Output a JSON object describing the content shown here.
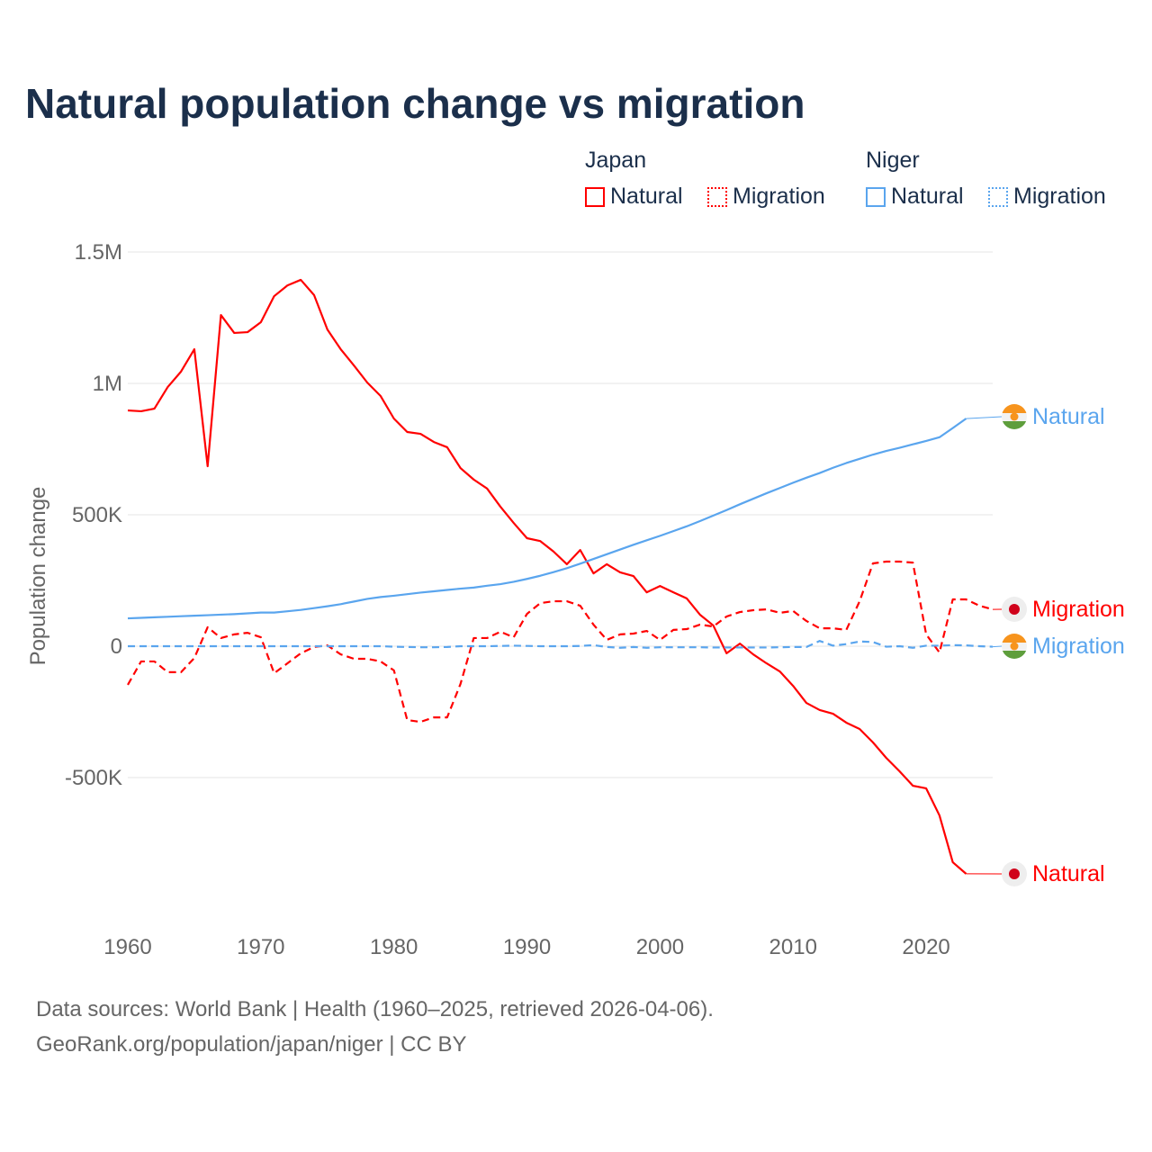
{
  "title": "Natural population change vs migration",
  "legend": {
    "groups": [
      {
        "name": "Japan",
        "items": [
          "Natural",
          "Migration"
        ]
      },
      {
        "name": "Niger",
        "items": [
          "Natural",
          "Migration"
        ]
      }
    ]
  },
  "colors": {
    "japan": "#ff0000",
    "niger": "#5aa5ee",
    "title": "#1b2f4b",
    "grid": "#e6e6e6",
    "tick": "#666666"
  },
  "end_labels": {
    "niger_natural": "Natural",
    "japan_migration": "Migration",
    "niger_migration": "Migration",
    "japan_natural": "Natural"
  },
  "source_lines": [
    "Data sources: World Bank | Health (1960–2025, retrieved 2026-04-06).",
    "GeoRank.org/population/japan/niger | CC BY"
  ],
  "chart_data": {
    "type": "line",
    "title": "Natural population change vs migration",
    "xlabel": "",
    "ylabel": "Population change",
    "xlim": [
      1960,
      2025
    ],
    "ylim": [
      -1000000,
      1500000
    ],
    "x_ticks": [
      1960,
      1970,
      1980,
      1990,
      2000,
      2010,
      2020
    ],
    "y_ticks": [
      {
        "v": 1500000,
        "label": "1.5M"
      },
      {
        "v": 1000000,
        "label": "1M"
      },
      {
        "v": 500000,
        "label": "500K"
      },
      {
        "v": 0,
        "label": "0"
      },
      {
        "v": -500000,
        "label": "-500K"
      }
    ],
    "grid": true,
    "legend_position": "top-right",
    "series": [
      {
        "name": "Japan Natural",
        "country": "Japan",
        "kind": "Natural",
        "start": 1960,
        "values_k": [
          897,
          894,
          904,
          986,
          1045,
          1130,
          685,
          1260,
          1192,
          1195,
          1233,
          1332,
          1373,
          1394,
          1336,
          1205,
          1130,
          1068,
          1003,
          952,
          866,
          815,
          808,
          777,
          757,
          678,
          634,
          600,
          531,
          469,
          411,
          400,
          360,
          312,
          366,
          277,
          312,
          281,
          267,
          205,
          229,
          205,
          182,
          120,
          79,
          -27,
          10,
          -31,
          -65,
          -96,
          -151,
          -216,
          -243,
          -257,
          -291,
          -315,
          -366,
          -425,
          -476,
          -531,
          -541,
          -644,
          -822,
          -866
        ]
      },
      {
        "name": "Japan Migration",
        "country": "Japan",
        "kind": "Migration",
        "start": 1960,
        "values_k": [
          -147,
          -58,
          -58,
          -99,
          -99,
          -45,
          72,
          31,
          45,
          51,
          34,
          -103,
          -65,
          -27,
          -3,
          3,
          -31,
          -48,
          -48,
          -58,
          -92,
          -281,
          -288,
          -271,
          -271,
          -144,
          31,
          31,
          55,
          34,
          123,
          164,
          171,
          171,
          154,
          82,
          24,
          45,
          48,
          58,
          24,
          62,
          65,
          82,
          75,
          113,
          130,
          137,
          140,
          127,
          134,
          96,
          68,
          68,
          62,
          171,
          315,
          322,
          322,
          318,
          45,
          -24,
          178,
          178,
          154,
          140
        ]
      },
      {
        "name": "Niger Natural",
        "country": "Niger",
        "kind": "Natural",
        "start": 1960,
        "values_k": [
          106,
          108,
          110,
          112,
          114,
          116,
          118,
          120,
          122,
          125,
          128,
          128,
          133,
          138,
          145,
          152,
          160,
          170,
          180,
          187,
          192,
          198,
          204,
          209,
          214,
          219,
          223,
          230,
          236,
          245,
          256,
          268,
          282,
          297,
          314,
          332,
          350,
          368,
          386,
          403,
          420,
          438,
          456,
          476,
          497,
          518,
          540,
          561,
          582,
          602,
          622,
          641,
          659,
          679,
          697,
          713,
          729,
          743,
          755,
          768,
          781,
          795,
          830,
          866
        ]
      },
      {
        "name": "Niger Migration",
        "country": "Niger",
        "kind": "Migration",
        "start": 1960,
        "values_k": [
          0,
          0,
          0,
          0,
          0,
          0,
          0,
          0,
          0,
          0,
          0,
          0,
          0,
          0,
          0,
          0,
          0,
          0,
          0,
          0,
          -2,
          -3,
          -4,
          -4,
          -3,
          0,
          0,
          0,
          1,
          2,
          1,
          0,
          0,
          0,
          1,
          4,
          -3,
          -6,
          -3,
          -6,
          -4,
          -4,
          -4,
          -4,
          -5,
          -5,
          -5,
          -5,
          -5,
          -4,
          -3,
          -3,
          20,
          2,
          8,
          18,
          16,
          -2,
          0,
          -6,
          2,
          2,
          4,
          3,
          0,
          -2
        ]
      }
    ]
  }
}
